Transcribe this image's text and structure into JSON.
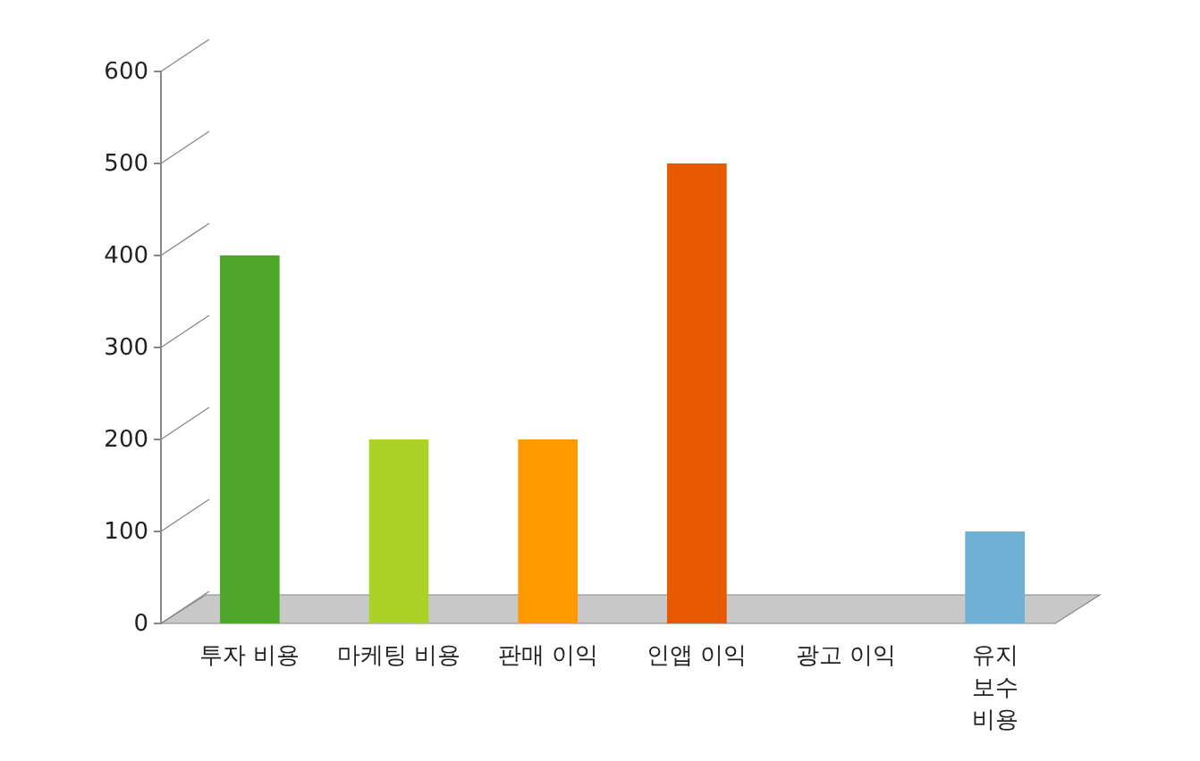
{
  "chart_data": {
    "type": "bar",
    "categories": [
      "투자 비용",
      "마케팅 비용",
      "판매 이익",
      "인앱 이익",
      "광고 이익",
      "유지 보수 비용"
    ],
    "values": [
      400,
      200,
      200,
      500,
      0,
      100
    ],
    "colors": [
      "#4fa72a",
      "#acd22a",
      "#ff9a00",
      "#e85a00",
      "#c00000",
      "#70b0d4"
    ],
    "ylim": [
      0,
      600
    ],
    "yticks": [
      0,
      100,
      200,
      300,
      400,
      500,
      600
    ]
  }
}
